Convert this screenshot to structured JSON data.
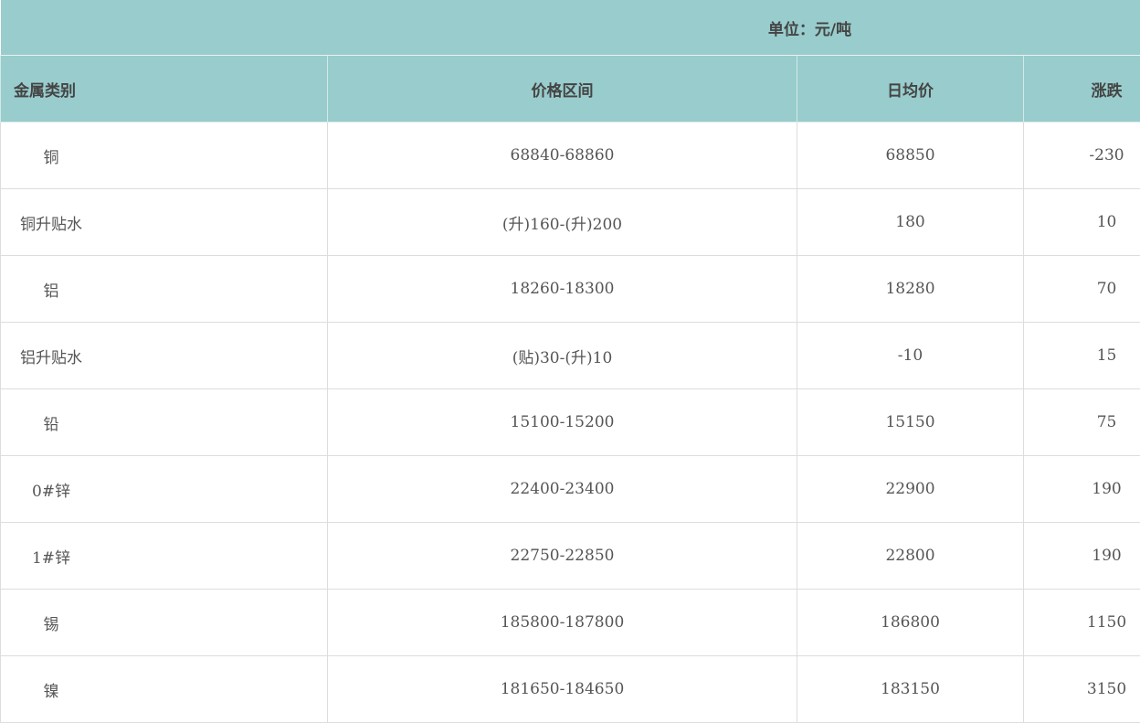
{
  "unit_label": "单位：元/吨",
  "columns": [
    "金属类别",
    "价格区间",
    "日均价",
    "涨跌"
  ],
  "rows": [
    {
      "metal": "铜",
      "range": "68840-68860",
      "avg": "68850",
      "change": "-230"
    },
    {
      "metal": "铜升贴水",
      "range": "(升)160-(升)200",
      "avg": "180",
      "change": "10"
    },
    {
      "metal": "铝",
      "range": "18260-18300",
      "avg": "18280",
      "change": "70"
    },
    {
      "metal": "铝升贴水",
      "range": "(贴)30-(升)10",
      "avg": "-10",
      "change": "15"
    },
    {
      "metal": "铅",
      "range": "15100-15200",
      "avg": "15150",
      "change": "75"
    },
    {
      "metal": "0#锌",
      "range": "22400-23400",
      "avg": "22900",
      "change": "190"
    },
    {
      "metal": "1#锌",
      "range": "22750-22850",
      "avg": "22800",
      "change": "190"
    },
    {
      "metal": "锡",
      "range": "185800-187800",
      "avg": "186800",
      "change": "1150"
    },
    {
      "metal": "镍",
      "range": "181650-184650",
      "avg": "183150",
      "change": "3150"
    }
  ],
  "colors": {
    "header_bg": "#99cccc",
    "text": "#555555",
    "border": "#dddddd"
  }
}
